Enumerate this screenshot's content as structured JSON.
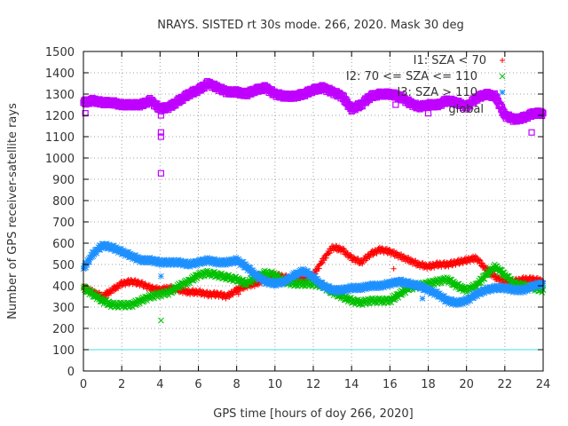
{
  "chart_data": {
    "type": "scatter",
    "title": "NRAYS. SISTED rt 30s mode. 266, 2020. Mask 30 deg",
    "xlabel": "GPS time [hours of doy 266, 2020]",
    "ylabel": "Number of GPS receiver-satellite rays",
    "xlim": [
      0,
      24
    ],
    "ylim": [
      0,
      1500
    ],
    "xticks": [
      0,
      2,
      4,
      6,
      8,
      10,
      12,
      14,
      16,
      18,
      20,
      22,
      24
    ],
    "yticks": [
      0,
      100,
      200,
      300,
      400,
      500,
      600,
      700,
      800,
      900,
      1000,
      1100,
      1200,
      1300,
      1400,
      1500
    ],
    "reference_line": {
      "y": 100,
      "color": "#40e0e0"
    },
    "series": [
      {
        "name": "I1: SZA < 70",
        "marker": "+",
        "color": "#ff0000",
        "points": [
          [
            0,
            390
          ],
          [
            0.5,
            370
          ],
          [
            1,
            350
          ],
          [
            1.5,
            380
          ],
          [
            2,
            410
          ],
          [
            2.5,
            420
          ],
          [
            3,
            410
          ],
          [
            3.5,
            390
          ],
          [
            4,
            380
          ],
          [
            4.5,
            390
          ],
          [
            5,
            380
          ],
          [
            5.5,
            370
          ],
          [
            6,
            370
          ],
          [
            6.5,
            360
          ],
          [
            7,
            360
          ],
          [
            7.5,
            350
          ],
          [
            8,
            380
          ],
          [
            8.5,
            400
          ],
          [
            9,
            410
          ],
          [
            9.5,
            430
          ],
          [
            10,
            450
          ],
          [
            10.5,
            440
          ],
          [
            11,
            430
          ],
          [
            11.5,
            430
          ],
          [
            12,
            450
          ],
          [
            12.5,
            520
          ],
          [
            13,
            580
          ],
          [
            13.5,
            570
          ],
          [
            14,
            530
          ],
          [
            14.5,
            510
          ],
          [
            15,
            550
          ],
          [
            15.5,
            570
          ],
          [
            16,
            560
          ],
          [
            16.5,
            540
          ],
          [
            17,
            520
          ],
          [
            17.5,
            500
          ],
          [
            18,
            490
          ],
          [
            18.5,
            500
          ],
          [
            19,
            500
          ],
          [
            19.5,
            510
          ],
          [
            20,
            520
          ],
          [
            20.5,
            530
          ],
          [
            21,
            480
          ],
          [
            21.5,
            440
          ],
          [
            22,
            420
          ],
          [
            22.5,
            420
          ],
          [
            23,
            430
          ],
          [
            23.5,
            430
          ],
          [
            24,
            420
          ]
        ],
        "outliers": [
          [
            16.2,
            480
          ],
          [
            8.1,
            360
          ]
        ]
      },
      {
        "name": "I2: 70 <= SZA <= 110",
        "marker": "x",
        "color": "#00c000",
        "points": [
          [
            0,
            390
          ],
          [
            0.5,
            360
          ],
          [
            1,
            330
          ],
          [
            1.5,
            310
          ],
          [
            2,
            310
          ],
          [
            2.5,
            310
          ],
          [
            3,
            330
          ],
          [
            3.5,
            350
          ],
          [
            4,
            360
          ],
          [
            4.5,
            370
          ],
          [
            5,
            400
          ],
          [
            5.5,
            420
          ],
          [
            6,
            450
          ],
          [
            6.5,
            460
          ],
          [
            7,
            450
          ],
          [
            7.5,
            440
          ],
          [
            8,
            430
          ],
          [
            8.5,
            410
          ],
          [
            9,
            440
          ],
          [
            9.5,
            460
          ],
          [
            10,
            450
          ],
          [
            10.5,
            420
          ],
          [
            11,
            410
          ],
          [
            11.5,
            410
          ],
          [
            12,
            410
          ],
          [
            12.5,
            400
          ],
          [
            13,
            370
          ],
          [
            13.5,
            350
          ],
          [
            14,
            330
          ],
          [
            14.5,
            320
          ],
          [
            15,
            330
          ],
          [
            15.5,
            330
          ],
          [
            16,
            330
          ],
          [
            16.5,
            360
          ],
          [
            17,
            390
          ],
          [
            17.5,
            400
          ],
          [
            18,
            410
          ],
          [
            18.5,
            420
          ],
          [
            19,
            430
          ],
          [
            19.5,
            400
          ],
          [
            20,
            380
          ],
          [
            20.5,
            400
          ],
          [
            21,
            450
          ],
          [
            21.5,
            490
          ],
          [
            22,
            450
          ],
          [
            22.5,
            410
          ],
          [
            23,
            400
          ],
          [
            23.5,
            390
          ],
          [
            24,
            380
          ]
        ],
        "outliers": [
          [
            4.05,
            237
          ]
        ]
      },
      {
        "name": "I3: SZA > 110",
        "marker": "*",
        "color": "#1e90ff",
        "points": [
          [
            0,
            480
          ],
          [
            0.5,
            550
          ],
          [
            1,
            590
          ],
          [
            1.5,
            580
          ],
          [
            2,
            560
          ],
          [
            2.5,
            540
          ],
          [
            3,
            520
          ],
          [
            3.5,
            520
          ],
          [
            4,
            510
          ],
          [
            4.5,
            510
          ],
          [
            5,
            510
          ],
          [
            5.5,
            500
          ],
          [
            6,
            510
          ],
          [
            6.5,
            520
          ],
          [
            7,
            510
          ],
          [
            7.5,
            510
          ],
          [
            8,
            520
          ],
          [
            8.5,
            490
          ],
          [
            9,
            450
          ],
          [
            9.5,
            420
          ],
          [
            10,
            410
          ],
          [
            10.5,
            420
          ],
          [
            11,
            450
          ],
          [
            11.5,
            470
          ],
          [
            12,
            440
          ],
          [
            12.5,
            400
          ],
          [
            13,
            380
          ],
          [
            13.5,
            380
          ],
          [
            14,
            390
          ],
          [
            14.5,
            390
          ],
          [
            15,
            400
          ],
          [
            15.5,
            400
          ],
          [
            16,
            410
          ],
          [
            16.5,
            420
          ],
          [
            17,
            410
          ],
          [
            17.5,
            400
          ],
          [
            18,
            380
          ],
          [
            18.5,
            360
          ],
          [
            19,
            330
          ],
          [
            19.5,
            320
          ],
          [
            20,
            330
          ],
          [
            20.5,
            360
          ],
          [
            21,
            380
          ],
          [
            21.5,
            390
          ],
          [
            22,
            390
          ],
          [
            22.5,
            380
          ],
          [
            23,
            380
          ],
          [
            23.5,
            400
          ],
          [
            24,
            410
          ]
        ],
        "outliers": [
          [
            4.05,
            445
          ],
          [
            17.7,
            340
          ]
        ]
      },
      {
        "name": "global",
        "marker": "square",
        "color": "#c000ff",
        "points": [
          [
            0,
            1260
          ],
          [
            0.5,
            1270
          ],
          [
            1,
            1260
          ],
          [
            1.5,
            1260
          ],
          [
            2,
            1250
          ],
          [
            2.5,
            1250
          ],
          [
            3,
            1250
          ],
          [
            3.5,
            1270
          ],
          [
            4,
            1230
          ],
          [
            4.5,
            1240
          ],
          [
            5,
            1270
          ],
          [
            5.5,
            1300
          ],
          [
            6,
            1320
          ],
          [
            6.5,
            1350
          ],
          [
            7,
            1330
          ],
          [
            7.5,
            1310
          ],
          [
            8,
            1310
          ],
          [
            8.5,
            1300
          ],
          [
            9,
            1320
          ],
          [
            9.5,
            1330
          ],
          [
            10,
            1300
          ],
          [
            10.5,
            1290
          ],
          [
            11,
            1290
          ],
          [
            11.5,
            1300
          ],
          [
            12,
            1320
          ],
          [
            12.5,
            1330
          ],
          [
            13,
            1310
          ],
          [
            13.5,
            1290
          ],
          [
            14,
            1230
          ],
          [
            14.5,
            1250
          ],
          [
            15,
            1290
          ],
          [
            15.5,
            1300
          ],
          [
            16,
            1300
          ],
          [
            16.5,
            1290
          ],
          [
            17,
            1260
          ],
          [
            17.5,
            1240
          ],
          [
            18,
            1250
          ],
          [
            18.5,
            1250
          ],
          [
            19,
            1270
          ],
          [
            19.5,
            1260
          ],
          [
            20,
            1240
          ],
          [
            20.5,
            1280
          ],
          [
            21,
            1300
          ],
          [
            21.5,
            1290
          ],
          [
            22,
            1200
          ],
          [
            22.5,
            1180
          ],
          [
            23,
            1190
          ],
          [
            23.5,
            1210
          ],
          [
            24,
            1210
          ]
        ],
        "outliers": [
          [
            4.05,
            928
          ],
          [
            4.05,
            1100
          ],
          [
            4.05,
            1120
          ],
          [
            4.05,
            1200
          ],
          [
            0.1,
            1210
          ],
          [
            16.3,
            1250
          ],
          [
            23.4,
            1120
          ],
          [
            18.0,
            1210
          ]
        ]
      }
    ],
    "legend": "top-right"
  }
}
